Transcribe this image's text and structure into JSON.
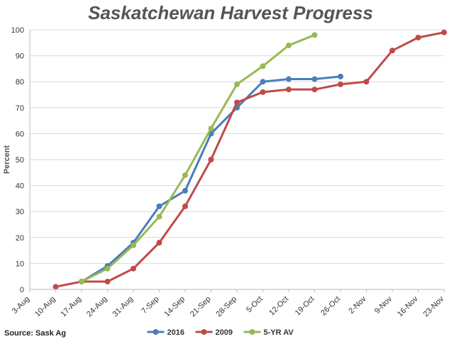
{
  "chart_data": {
    "type": "line",
    "title": "Saskatchewan Harvest Progress",
    "y_label": "Percent",
    "source": "Source: Sask Ag",
    "categories": [
      "3-Aug",
      "10-Aug",
      "17-Aug",
      "24-Aug",
      "31-Aug",
      "7-Sep",
      "14-Sep",
      "21-Sep",
      "28-Sep",
      "5-Oct",
      "12-Oct",
      "19-Oct",
      "26-Oct",
      "2-Nov",
      "9-Nov",
      "16-Nov",
      "23-Nov"
    ],
    "series": [
      {
        "name": "2016",
        "color": "#4a7ebb",
        "values": [
          null,
          null,
          3,
          9,
          18,
          32,
          38,
          60,
          70,
          80,
          81,
          81,
          82,
          null,
          null,
          null,
          null
        ]
      },
      {
        "name": "2009",
        "color": "#be4b48",
        "values": [
          null,
          1,
          3,
          3,
          8,
          18,
          32,
          50,
          72,
          76,
          77,
          77,
          79,
          80,
          92,
          97,
          99
        ]
      },
      {
        "name": "5-YR AV",
        "color": "#98b954",
        "values": [
          null,
          null,
          3,
          8,
          17,
          28,
          44,
          62,
          79,
          86,
          94,
          98,
          null,
          null,
          null,
          null,
          null
        ]
      }
    ],
    "ylim": [
      0,
      100
    ],
    "yticks": [
      0,
      10,
      20,
      30,
      40,
      50,
      60,
      70,
      80,
      90,
      100
    ],
    "grid": true,
    "legend": "bottom"
  }
}
